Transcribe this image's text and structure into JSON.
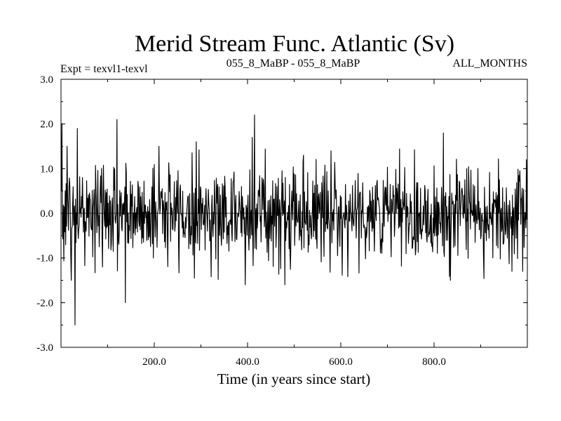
{
  "chart_data": {
    "type": "line",
    "title": "Merid Stream Func. Atlantic (Sv)",
    "subtitle_left": "Expt = texvl1-texvl",
    "subtitle_center": "055_8_MaBP - 055_8_MaBP",
    "subtitle_right": "ALL_MONTHS",
    "xlabel": "Time (in years since start)",
    "ylabel": "",
    "xlim": [
      0,
      1000
    ],
    "ylim": [
      -3.0,
      3.0
    ],
    "x_ticks": [
      200,
      400,
      600,
      800
    ],
    "x_tick_labels": [
      "200.0",
      "400.0",
      "600.0",
      "800.0"
    ],
    "y_ticks": [
      3,
      2,
      1,
      0,
      -1,
      -2,
      -3
    ],
    "y_tick_labels": [
      "3.0",
      "2.0",
      "1.0",
      "0.0",
      "-1.0",
      "-2.0",
      "-3.0"
    ],
    "zero_line": true,
    "grid": false,
    "series": [
      {
        "name": "Merid Stream Func. Atlantic",
        "x_start": 1,
        "x_step": 1,
        "n_points": 1000,
        "mean": 0.0,
        "std": 0.55,
        "peaks": [
          {
            "x": 2,
            "y": 2.0
          },
          {
            "x": 13,
            "y": 1.5
          },
          {
            "x": 35,
            "y": 1.9
          },
          {
            "x": 30,
            "y": -2.5
          },
          {
            "x": 22,
            "y": -1.5
          },
          {
            "x": 120,
            "y": 2.1
          },
          {
            "x": 138,
            "y": -2.0
          },
          {
            "x": 210,
            "y": 1.5
          },
          {
            "x": 290,
            "y": 1.6
          },
          {
            "x": 395,
            "y": -1.6
          },
          {
            "x": 410,
            "y": 1.7
          },
          {
            "x": 415,
            "y": 2.2
          },
          {
            "x": 480,
            "y": -1.6
          },
          {
            "x": 520,
            "y": 1.3
          },
          {
            "x": 820,
            "y": 1.8
          },
          {
            "x": 835,
            "y": -1.5
          },
          {
            "x": 990,
            "y": -1.3
          },
          {
            "x": 998,
            "y": 1.2
          }
        ]
      }
    ]
  }
}
